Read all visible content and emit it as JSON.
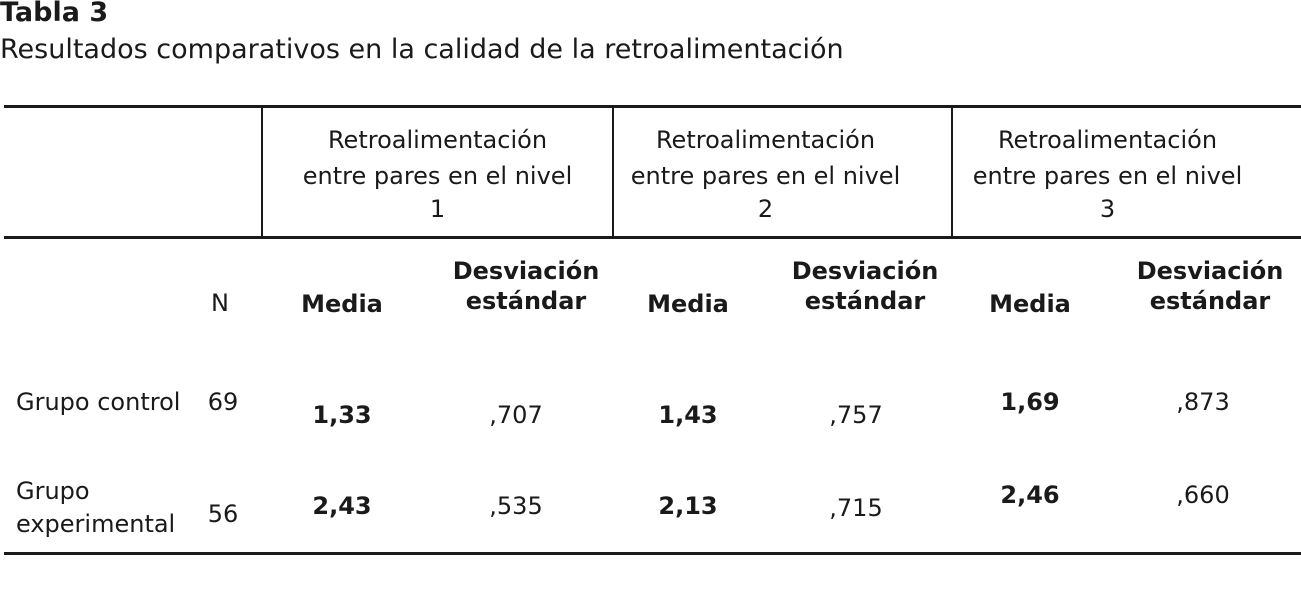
{
  "table": {
    "title": "Tabla 3",
    "subtitle": "Resultados comparativos en la calidad de la retroalimentación",
    "group_headers": [
      {
        "line1": "Retroalimentación",
        "line2": "entre pares en el nivel",
        "line3": "1"
      },
      {
        "line1": "Retroalimentación",
        "line2": "entre pares en el nivel",
        "line3": "2"
      },
      {
        "line1": "Retroalimentación",
        "line2": "entre pares en el nivel",
        "line3": "3"
      }
    ],
    "col_n": "N",
    "col_media": "Media",
    "col_sd_line1": "Desviación",
    "col_sd_line2": "estándar",
    "rows": [
      {
        "label_line1": "Grupo control",
        "label_line2": "",
        "n": "69",
        "l1_media": "1,33",
        "l1_sd": ",707",
        "l2_media": "1,43",
        "l2_sd": ",757",
        "l3_media": "1,69",
        "l3_sd": ",873"
      },
      {
        "label_line1": "Grupo",
        "label_line2": "experimental",
        "n": "56",
        "l1_media": "2,43",
        "l1_sd": ",535",
        "l2_media": "2,13",
        "l2_sd": ",715",
        "l3_media": "2,46",
        "l3_sd": ",660"
      }
    ]
  }
}
